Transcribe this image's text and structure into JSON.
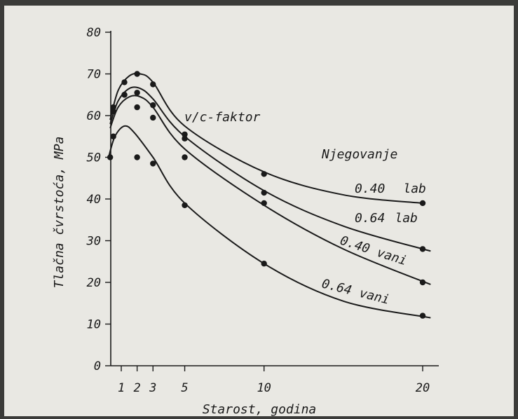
{
  "chart_data": {
    "type": "scatter",
    "title": "",
    "xlabel": "Starost, godina",
    "ylabel": "Tlačna čvrstoća, MPa",
    "xlim": [
      0,
      21
    ],
    "ylim": [
      0,
      80
    ],
    "x_ticks": [
      1,
      2,
      3,
      5,
      10,
      20
    ],
    "y_ticks": [
      0,
      10,
      20,
      30,
      40,
      50,
      60,
      70,
      80
    ],
    "annotations": {
      "factor": "v/c-faktor",
      "curing": "Njegovanje"
    },
    "series": [
      {
        "name": "0.40 lab",
        "label_parts": [
          "0.40",
          "lab"
        ],
        "points": [
          [
            0.5,
            62
          ],
          [
            1.2,
            68
          ],
          [
            2,
            70
          ],
          [
            3,
            67.5
          ],
          [
            5,
            55.5
          ],
          [
            10,
            46
          ],
          [
            20,
            39
          ]
        ],
        "curve": [
          [
            0.3,
            59
          ],
          [
            0.8,
            66
          ],
          [
            1.5,
            69.5
          ],
          [
            2.2,
            70
          ],
          [
            3,
            68
          ],
          [
            5,
            57.5
          ],
          [
            10,
            46.5
          ],
          [
            15,
            41
          ],
          [
            20,
            39
          ]
        ]
      },
      {
        "name": "0.64 lab",
        "label_parts": [
          "0.64",
          "lab"
        ],
        "points": [
          [
            0.5,
            61
          ],
          [
            1.2,
            65
          ],
          [
            2,
            65.5
          ],
          [
            3,
            62.5
          ],
          [
            5,
            54.5
          ],
          [
            10,
            41.5
          ],
          [
            20,
            28
          ]
        ],
        "curve": [
          [
            0.3,
            58
          ],
          [
            0.8,
            63.5
          ],
          [
            1.5,
            66.5
          ],
          [
            2.2,
            66.5
          ],
          [
            3,
            64
          ],
          [
            5,
            55
          ],
          [
            10,
            42
          ],
          [
            15,
            33.5
          ],
          [
            20.5,
            27.5
          ]
        ]
      },
      {
        "name": "0.40 vani",
        "label_parts": [
          "0.40",
          "vani"
        ],
        "points": [
          [
            0.5,
            55
          ],
          [
            1.2,
            65
          ],
          [
            2,
            62
          ],
          [
            3,
            59.5
          ],
          [
            5,
            50
          ],
          [
            10,
            39
          ],
          [
            20,
            20
          ]
        ],
        "curve": [
          [
            0.3,
            57
          ],
          [
            0.8,
            62
          ],
          [
            1.5,
            64.5
          ],
          [
            2.2,
            64.5
          ],
          [
            3,
            62
          ],
          [
            5,
            52
          ],
          [
            10,
            38.5
          ],
          [
            15,
            28
          ],
          [
            20.5,
            19.5
          ]
        ]
      },
      {
        "name": "0.64 vani",
        "label_parts": [
          "0.64",
          "vani"
        ],
        "points": [
          [
            0.3,
            50
          ],
          [
            2,
            50
          ],
          [
            3,
            48.5
          ],
          [
            5,
            38.5
          ],
          [
            10,
            24.5
          ],
          [
            20,
            12
          ]
        ],
        "curve": [
          [
            0.2,
            50
          ],
          [
            0.6,
            55
          ],
          [
            1.2,
            57.5
          ],
          [
            1.8,
            56
          ],
          [
            3,
            50
          ],
          [
            5,
            39
          ],
          [
            10,
            24.5
          ],
          [
            15,
            15.5
          ],
          [
            20.5,
            11.5
          ]
        ]
      }
    ]
  }
}
